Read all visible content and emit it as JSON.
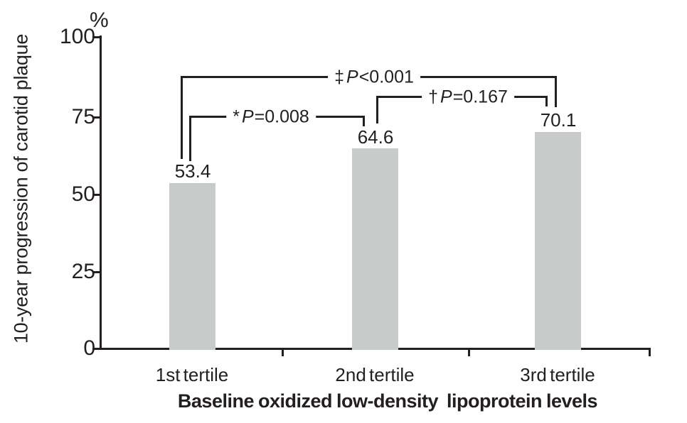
{
  "chart_data": {
    "type": "bar",
    "title": "",
    "xlabel": "Baseline oxidized low-density  lipoprotein levels",
    "ylabel": "10-year progression of carotid plaque",
    "y_unit": "%",
    "ylim": [
      0,
      100
    ],
    "grid": false,
    "legend": false,
    "bar_color": "#c9caca",
    "ink_color": "#231f20",
    "categories": [
      "1st tertile",
      "2nd tertile",
      "3rd tertile"
    ],
    "values": [
      53.4,
      64.6,
      70.1
    ],
    "value_labels": [
      "53.4",
      "64.6",
      "70.1"
    ],
    "yticks": [
      "100",
      "75",
      "50",
      "25",
      "0"
    ],
    "annotations": [
      {
        "marker": "*",
        "p": "P",
        "rest": "=0.008",
        "pair": [
          "1st tertile",
          "2nd tertile"
        ]
      },
      {
        "marker": "†",
        "p": "P",
        "rest": "=0.167",
        "pair": [
          "2nd tertile",
          "3rd tertile"
        ]
      },
      {
        "marker": "‡",
        "p": "P",
        "rest": "<0.001",
        "pair": [
          "1st tertile",
          "3rd tertile"
        ]
      }
    ]
  }
}
